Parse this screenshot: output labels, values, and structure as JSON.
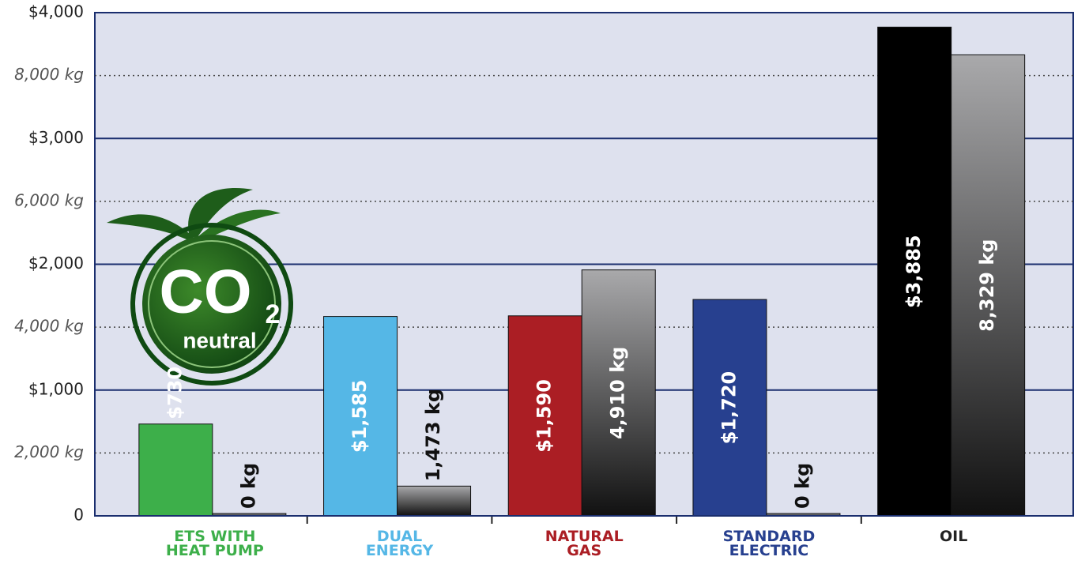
{
  "chart_data": {
    "type": "bar",
    "categories": [
      "ETS WITH HEAT PUMP",
      "DUAL ENERGY",
      "NATURAL GAS",
      "STANDARD ELECTRIC",
      "OIL"
    ],
    "series": [
      {
        "colors": [
          "#3daf4a",
          "#55b7e6",
          "#ab1e24",
          "#27408f",
          "#000000"
        ],
        "values": [
          730,
          1585,
          1590,
          1720,
          3885
        ],
        "value_labels": [
          "$730",
          "$1,585",
          "$1,590",
          "$1,720",
          "$3,885"
        ]
      },
      {
        "color": "#555555",
        "axis": "y2",
        "values": [
          0,
          1473,
          4910,
          0,
          8329
        ],
        "value_labels": [
          "0 kg",
          "1,473 kg",
          "4,910 kg",
          "0 kg",
          "8,329 kg"
        ]
      }
    ],
    "ylim": [
      0,
      4000
    ],
    "yticks": [
      0,
      {
        "value": 1000,
        "label": "$1,000"
      },
      {
        "value": 2000,
        "label": "$2,000"
      },
      {
        "value": 3000,
        "label": "$3,000"
      },
      {
        "value": 4000,
        "label": "$4,000"
      }
    ],
    "y2lim": [
      1000,
      9000
    ],
    "y2ticks": [
      {
        "value": 2000,
        "label": "2,000 kg"
      },
      {
        "value": 4000,
        "label": "4,000 kg"
      },
      {
        "value": 6000,
        "label": "6,000 kg"
      },
      {
        "value": 8000,
        "label": "8,000 kg"
      }
    ],
    "grid": true
  },
  "logo": {
    "text": "CO",
    "subscript": "2",
    "label": "neutral"
  }
}
